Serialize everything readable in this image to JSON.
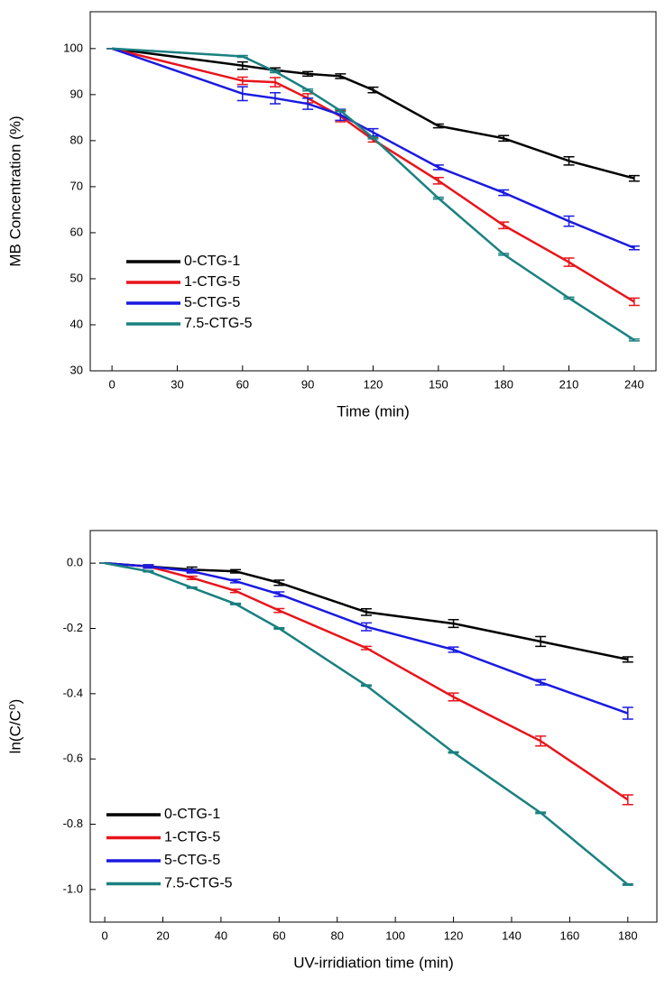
{
  "chart_data": [
    {
      "type": "line",
      "xlabel": "Time (min)",
      "ylabel": "MB Concentration (%)",
      "x": [
        0,
        60,
        75,
        90,
        105,
        120,
        150,
        180,
        210,
        240
      ],
      "xlim": [
        -10,
        250
      ],
      "ylim": [
        30,
        108
      ],
      "xticks": [
        0,
        30,
        60,
        90,
        120,
        150,
        180,
        210,
        240
      ],
      "yticks": [
        30,
        40,
        50,
        60,
        70,
        80,
        90,
        100
      ],
      "legend": "lower left",
      "series": [
        {
          "name": "0-CTG-1",
          "color": "#000000",
          "values": [
            100,
            96.3,
            95.3,
            94.5,
            94,
            91,
            83.2,
            80.5,
            75.6,
            71.8
          ],
          "errors": [
            0,
            0.8,
            0.5,
            0.5,
            0.5,
            0.6,
            0.4,
            0.6,
            0.9,
            0.6
          ]
        },
        {
          "name": "1-CTG-5",
          "color": "#e8141b",
          "values": [
            100,
            93,
            92.7,
            89.2,
            85.3,
            80.2,
            71.3,
            61.6,
            53.6,
            45
          ],
          "errors": [
            0,
            0.8,
            1,
            1,
            1.2,
            0.5,
            0.7,
            0.7,
            0.9,
            0.8
          ]
        },
        {
          "name": "5-CTG-5",
          "color": "#1a1ae0",
          "values": [
            100,
            90.2,
            89.2,
            88,
            85.6,
            81.8,
            74.2,
            68.7,
            62.5,
            56.7
          ],
          "errors": [
            0,
            1.5,
            1.2,
            1.2,
            1.2,
            0.8,
            0.5,
            0.6,
            1.1,
            0.4
          ]
        },
        {
          "name": "7.5-CTG-5",
          "color": "#1a8080",
          "values": [
            100,
            98.3,
            95,
            91,
            86.5,
            80.6,
            67.5,
            55.3,
            45.8,
            36.7
          ],
          "errors": [
            0,
            0.2,
            0.2,
            0.2,
            0.2,
            0.2,
            0.2,
            0.2,
            0.2,
            0.2
          ]
        }
      ]
    },
    {
      "type": "line",
      "xlabel": "UV-irridiation time (min)",
      "ylabel": "ln(C/C⁰)",
      "x": [
        0,
        15,
        30,
        45,
        60,
        90,
        120,
        150,
        180
      ],
      "xlim": [
        -5,
        190
      ],
      "ylim": [
        -1.1,
        0.1
      ],
      "xticks": [
        0,
        20,
        40,
        60,
        80,
        100,
        120,
        140,
        160,
        180
      ],
      "yticks": [
        {
          "value": -1,
          "label": "-1.0"
        },
        -0.8,
        -0.6,
        -0.4,
        -0.2,
        {
          "value": 0,
          "label": "0.0"
        }
      ],
      "legend": "lower left",
      "series": [
        {
          "name": "0-CTG-1",
          "color": "#000000",
          "values": [
            0,
            -0.01,
            -0.02,
            -0.025,
            -0.06,
            -0.15,
            -0.185,
            -0.24,
            -0.295
          ],
          "errors": [
            0,
            0.005,
            0.008,
            0.005,
            0.008,
            0.01,
            0.012,
            0.015,
            0.008
          ]
        },
        {
          "name": "1-CTG-5",
          "color": "#e8141b",
          "values": [
            0,
            -0.01,
            -0.045,
            -0.085,
            -0.145,
            -0.26,
            -0.41,
            -0.545,
            -0.725
          ],
          "errors": [
            0,
            0.004,
            0.005,
            0.005,
            0.006,
            0.005,
            0.012,
            0.015,
            0.015
          ]
        },
        {
          "name": "5-CTG-5",
          "color": "#1a1ae0",
          "values": [
            0,
            -0.01,
            -0.025,
            -0.055,
            -0.095,
            -0.195,
            -0.265,
            -0.365,
            -0.46
          ],
          "errors": [
            0,
            0.005,
            0.005,
            0.005,
            0.007,
            0.012,
            0.008,
            0.008,
            0.018
          ]
        },
        {
          "name": "7.5-CTG-5",
          "color": "#1a8080",
          "values": [
            0,
            -0.025,
            -0.075,
            -0.125,
            -0.2,
            -0.375,
            -0.58,
            -0.765,
            -0.985
          ],
          "errors": [
            0,
            0.002,
            0.002,
            0.002,
            0.002,
            0.002,
            0.002,
            0.002,
            0.002
          ]
        }
      ]
    }
  ]
}
